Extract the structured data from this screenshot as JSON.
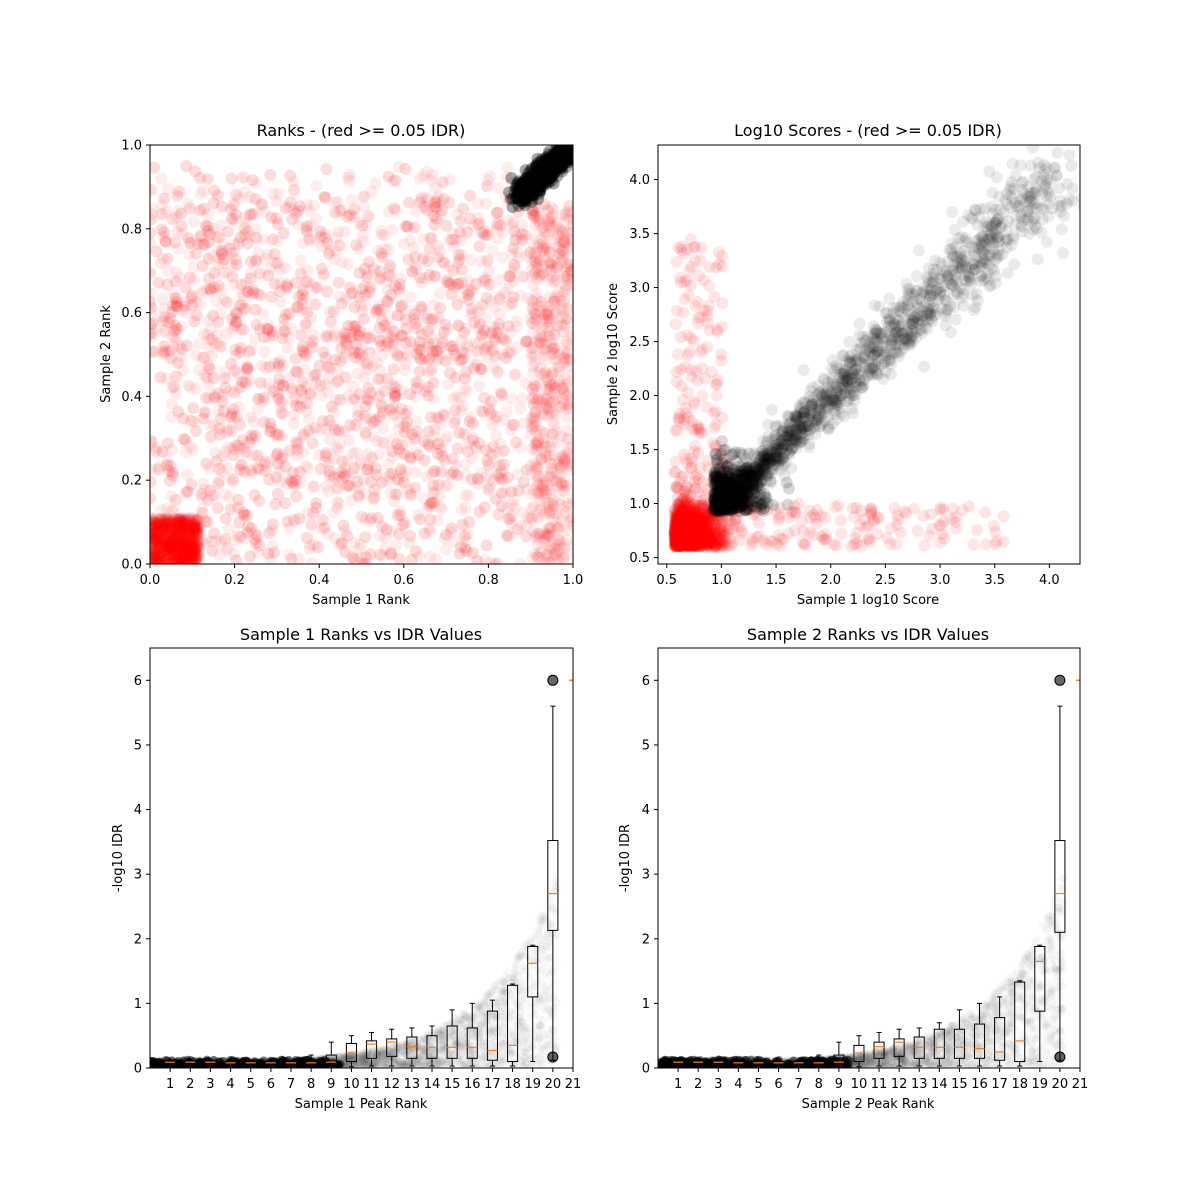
{
  "chart_data": [
    {
      "type": "scatter",
      "title": "Ranks - (red >= 0.05 IDR)",
      "xlabel": "Sample 1 Rank",
      "ylabel": "Sample 2 Rank",
      "xlim": [
        0,
        1
      ],
      "ylim": [
        0,
        1
      ],
      "xticks": [
        "0.0",
        "0.2",
        "0.4",
        "0.6",
        "0.8",
        "1.0"
      ],
      "yticks": [
        "0.0",
        "0.2",
        "0.4",
        "0.6",
        "0.8",
        "1.0"
      ],
      "grid": false,
      "colors": {
        "pass_idr": "#000000",
        "fail_idr": "#ff0000"
      },
      "series": [
        {
          "color": "#ff0000",
          "description_points": [
            {
              "x": 0.05,
              "y": 0.05
            },
            {
              "x": 0.2,
              "y": 0.18
            },
            {
              "x": 0.55,
              "y": 0.55
            },
            {
              "x": 0.3,
              "y": 0.7
            },
            {
              "x": 0.7,
              "y": 0.3
            },
            {
              "x": 0.5,
              "y": 0.35
            },
            {
              "x": 0.25,
              "y": 0.45
            },
            {
              "x": 0.45,
              "y": 0.85
            }
          ]
        },
        {
          "color": "#000000",
          "description_points": [
            {
              "x": 0.88,
              "y": 0.88
            },
            {
              "x": 0.92,
              "y": 0.92
            },
            {
              "x": 0.96,
              "y": 0.96
            },
            {
              "x": 0.99,
              "y": 0.99
            }
          ]
        }
      ]
    },
    {
      "type": "scatter",
      "title": "Log10 Scores - (red >= 0.05 IDR)",
      "xlabel": "Sample 1 log10 Score",
      "ylabel": "Sample 2 log10 Score",
      "xlim": [
        0.42,
        4.28
      ],
      "ylim": [
        0.44,
        4.32
      ],
      "xticks": [
        "0.5",
        "1.0",
        "1.5",
        "2.0",
        "2.5",
        "3.0",
        "3.5",
        "4.0"
      ],
      "yticks": [
        "0.5",
        "1.0",
        "1.5",
        "2.0",
        "2.5",
        "3.0",
        "3.5",
        "4.0"
      ],
      "grid": false,
      "colors": {
        "pass_idr": "#000000",
        "fail_idr": "#ff0000"
      },
      "series": [
        {
          "color": "#ff0000",
          "description_points": [
            {
              "x": 0.6,
              "y": 0.6
            },
            {
              "x": 0.9,
              "y": 0.8
            },
            {
              "x": 0.7,
              "y": 2.5
            },
            {
              "x": 2.5,
              "y": 0.7
            },
            {
              "x": 1.0,
              "y": 3.5
            },
            {
              "x": 3.6,
              "y": 0.8
            }
          ]
        },
        {
          "color": "#000000",
          "description_points": [
            {
              "x": 1.0,
              "y": 1.0
            },
            {
              "x": 1.5,
              "y": 1.5
            },
            {
              "x": 2.0,
              "y": 2.0
            },
            {
              "x": 2.5,
              "y": 2.5
            },
            {
              "x": 3.0,
              "y": 3.0
            },
            {
              "x": 3.5,
              "y": 3.5
            },
            {
              "x": 4.1,
              "y": 4.13
            }
          ]
        }
      ]
    },
    {
      "type": "box",
      "title": "Sample 1 Ranks vs IDR Values",
      "xlabel": "Sample 1 Peak Rank",
      "ylabel": "-log10 IDR",
      "xlim": [
        0,
        21
      ],
      "ylim": [
        0,
        6.5
      ],
      "xticks": [
        "1",
        "2",
        "3",
        "4",
        "5",
        "6",
        "7",
        "8",
        "9",
        "10",
        "11",
        "12",
        "13",
        "14",
        "15",
        "16",
        "17",
        "18",
        "19",
        "20",
        "21"
      ],
      "yticks": [
        "0",
        "1",
        "2",
        "3",
        "4",
        "5",
        "6"
      ],
      "grid": false,
      "colors": {
        "box": "#000000",
        "median": "#ff7f0e",
        "points": "#000000"
      },
      "boxes": [
        {
          "x": 1,
          "q1": 0.06,
          "median": 0.09,
          "q3": 0.1,
          "whisker_low": 0.04,
          "whisker_high": 0.12
        },
        {
          "x": 2,
          "q1": 0.06,
          "median": 0.09,
          "q3": 0.1,
          "whisker_low": 0.04,
          "whisker_high": 0.12
        },
        {
          "x": 3,
          "q1": 0.06,
          "median": 0.09,
          "q3": 0.1,
          "whisker_low": 0.04,
          "whisker_high": 0.12
        },
        {
          "x": 4,
          "q1": 0.06,
          "median": 0.08,
          "q3": 0.1,
          "whisker_low": 0.04,
          "whisker_high": 0.12
        },
        {
          "x": 5,
          "q1": 0.06,
          "median": 0.08,
          "q3": 0.1,
          "whisker_low": 0.04,
          "whisker_high": 0.12
        },
        {
          "x": 6,
          "q1": 0.06,
          "median": 0.08,
          "q3": 0.1,
          "whisker_low": 0.04,
          "whisker_high": 0.12
        },
        {
          "x": 7,
          "q1": 0.06,
          "median": 0.08,
          "q3": 0.1,
          "whisker_low": 0.04,
          "whisker_high": 0.12
        },
        {
          "x": 8,
          "q1": 0.05,
          "median": 0.08,
          "q3": 0.12,
          "whisker_low": 0.03,
          "whisker_high": 0.2
        },
        {
          "x": 9,
          "q1": 0.05,
          "median": 0.09,
          "q3": 0.2,
          "whisker_low": 0.02,
          "whisker_high": 0.4
        },
        {
          "x": 10,
          "q1": 0.1,
          "median": 0.23,
          "q3": 0.38,
          "whisker_low": 0.02,
          "whisker_high": 0.5
        },
        {
          "x": 11,
          "q1": 0.15,
          "median": 0.37,
          "q3": 0.42,
          "whisker_low": 0.03,
          "whisker_high": 0.55
        },
        {
          "x": 12,
          "q1": 0.18,
          "median": 0.4,
          "q3": 0.45,
          "whisker_low": 0.03,
          "whisker_high": 0.6
        },
        {
          "x": 13,
          "q1": 0.15,
          "median": 0.33,
          "q3": 0.48,
          "whisker_low": 0.03,
          "whisker_high": 0.62
        },
        {
          "x": 14,
          "q1": 0.15,
          "median": 0.32,
          "q3": 0.5,
          "whisker_low": 0.03,
          "whisker_high": 0.65
        },
        {
          "x": 15,
          "q1": 0.15,
          "median": 0.32,
          "q3": 0.65,
          "whisker_low": 0.03,
          "whisker_high": 0.9
        },
        {
          "x": 16,
          "q1": 0.15,
          "median": 0.32,
          "q3": 0.62,
          "whisker_low": 0.03,
          "whisker_high": 1.0
        },
        {
          "x": 17,
          "q1": 0.12,
          "median": 0.27,
          "q3": 0.88,
          "whisker_low": 0.03,
          "whisker_high": 1.05
        },
        {
          "x": 18,
          "q1": 0.1,
          "median": 0.35,
          "q3": 1.28,
          "whisker_low": 0.03,
          "whisker_high": 1.3
        },
        {
          "x": 19,
          "q1": 1.1,
          "median": 1.62,
          "q3": 1.88,
          "whisker_low": 0.1,
          "whisker_high": 1.9
        },
        {
          "x": 20,
          "q1": 2.13,
          "median": 2.7,
          "q3": 3.52,
          "whisker_low": 0.12,
          "whisker_high": 5.6
        }
      ],
      "outliers": [
        {
          "x": 20,
          "y": 6.0
        },
        {
          "x": 20,
          "y": 0.17
        },
        {
          "x": 21,
          "y": 6.0
        }
      ]
    },
    {
      "type": "box",
      "title": "Sample 2 Ranks vs IDR Values",
      "xlabel": "Sample 2 Peak Rank",
      "ylabel": "-log10 IDR",
      "xlim": [
        0,
        21
      ],
      "ylim": [
        0,
        6.5
      ],
      "xticks": [
        "1",
        "2",
        "3",
        "4",
        "5",
        "6",
        "7",
        "8",
        "9",
        "10",
        "11",
        "12",
        "13",
        "14",
        "15",
        "16",
        "17",
        "18",
        "19",
        "20",
        "21"
      ],
      "yticks": [
        "0",
        "1",
        "2",
        "3",
        "4",
        "5",
        "6"
      ],
      "grid": false,
      "colors": {
        "box": "#000000",
        "median": "#ff7f0e",
        "points": "#000000"
      },
      "boxes": [
        {
          "x": 1,
          "q1": 0.06,
          "median": 0.09,
          "q3": 0.1,
          "whisker_low": 0.04,
          "whisker_high": 0.12
        },
        {
          "x": 2,
          "q1": 0.06,
          "median": 0.09,
          "q3": 0.1,
          "whisker_low": 0.04,
          "whisker_high": 0.12
        },
        {
          "x": 3,
          "q1": 0.06,
          "median": 0.09,
          "q3": 0.1,
          "whisker_low": 0.04,
          "whisker_high": 0.12
        },
        {
          "x": 4,
          "q1": 0.06,
          "median": 0.08,
          "q3": 0.1,
          "whisker_low": 0.04,
          "whisker_high": 0.12
        },
        {
          "x": 5,
          "q1": 0.06,
          "median": 0.08,
          "q3": 0.1,
          "whisker_low": 0.04,
          "whisker_high": 0.12
        },
        {
          "x": 6,
          "q1": 0.06,
          "median": 0.08,
          "q3": 0.1,
          "whisker_low": 0.04,
          "whisker_high": 0.12
        },
        {
          "x": 7,
          "q1": 0.06,
          "median": 0.08,
          "q3": 0.1,
          "whisker_low": 0.04,
          "whisker_high": 0.12
        },
        {
          "x": 8,
          "q1": 0.05,
          "median": 0.08,
          "q3": 0.12,
          "whisker_low": 0.03,
          "whisker_high": 0.2
        },
        {
          "x": 9,
          "q1": 0.05,
          "median": 0.09,
          "q3": 0.2,
          "whisker_low": 0.02,
          "whisker_high": 0.4
        },
        {
          "x": 10,
          "q1": 0.1,
          "median": 0.23,
          "q3": 0.35,
          "whisker_low": 0.02,
          "whisker_high": 0.5
        },
        {
          "x": 11,
          "q1": 0.15,
          "median": 0.33,
          "q3": 0.4,
          "whisker_low": 0.03,
          "whisker_high": 0.55
        },
        {
          "x": 12,
          "q1": 0.18,
          "median": 0.4,
          "q3": 0.45,
          "whisker_low": 0.03,
          "whisker_high": 0.6
        },
        {
          "x": 13,
          "q1": 0.15,
          "median": 0.32,
          "q3": 0.48,
          "whisker_low": 0.03,
          "whisker_high": 0.62
        },
        {
          "x": 14,
          "q1": 0.15,
          "median": 0.32,
          "q3": 0.6,
          "whisker_low": 0.03,
          "whisker_high": 0.7
        },
        {
          "x": 15,
          "q1": 0.15,
          "median": 0.32,
          "q3": 0.6,
          "whisker_low": 0.03,
          "whisker_high": 0.9
        },
        {
          "x": 16,
          "q1": 0.15,
          "median": 0.3,
          "q3": 0.68,
          "whisker_low": 0.03,
          "whisker_high": 1.0
        },
        {
          "x": 17,
          "q1": 0.12,
          "median": 0.25,
          "q3": 0.78,
          "whisker_low": 0.03,
          "whisker_high": 1.1
        },
        {
          "x": 18,
          "q1": 0.1,
          "median": 0.42,
          "q3": 1.33,
          "whisker_low": 0.03,
          "whisker_high": 1.35
        },
        {
          "x": 19,
          "q1": 0.88,
          "median": 1.65,
          "q3": 1.88,
          "whisker_low": 0.1,
          "whisker_high": 1.9
        },
        {
          "x": 20,
          "q1": 2.1,
          "median": 2.7,
          "q3": 3.52,
          "whisker_low": 0.12,
          "whisker_high": 5.6
        }
      ],
      "outliers": [
        {
          "x": 20,
          "y": 6.0
        },
        {
          "x": 20,
          "y": 0.17
        },
        {
          "x": 21,
          "y": 6.0
        }
      ]
    }
  ]
}
